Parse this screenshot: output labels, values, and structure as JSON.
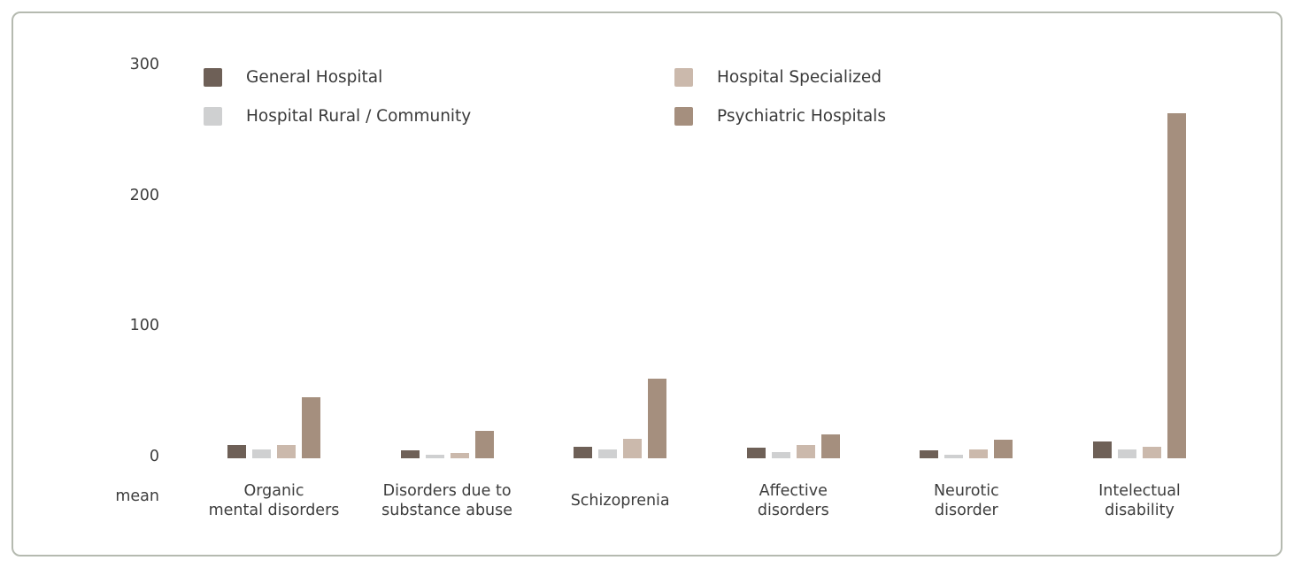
{
  "chart_data": {
    "type": "bar",
    "title": "",
    "xlabel": "",
    "ylabel": "mean",
    "ylim": [
      0,
      300
    ],
    "yticks": [
      0,
      100,
      200,
      300
    ],
    "grid": false,
    "legend_position": "top-left, two columns",
    "categories": [
      "Organic\nmental disorders",
      "Disorders due to\nsubstance abuse",
      "Schizoprenia",
      "Affective\ndisorders",
      "Neurotic\ndisorder",
      "Intelectual\ndisability"
    ],
    "series": [
      {
        "name": "General Hospital",
        "color": "#6e6057",
        "values": [
          10,
          6,
          9,
          8,
          6,
          13
        ]
      },
      {
        "name": "Hospital Rural / Community",
        "color": "#cfd0d1",
        "values": [
          7,
          3,
          7,
          5,
          3,
          7
        ]
      },
      {
        "name": "Hospital Specialized",
        "color": "#cbb9ac",
        "values": [
          10,
          4,
          15,
          10,
          7,
          9
        ]
      },
      {
        "name": "Psychiatric Hospitals",
        "color": "#a58f7e",
        "values": [
          47,
          21,
          61,
          18,
          14,
          264
        ]
      }
    ]
  }
}
